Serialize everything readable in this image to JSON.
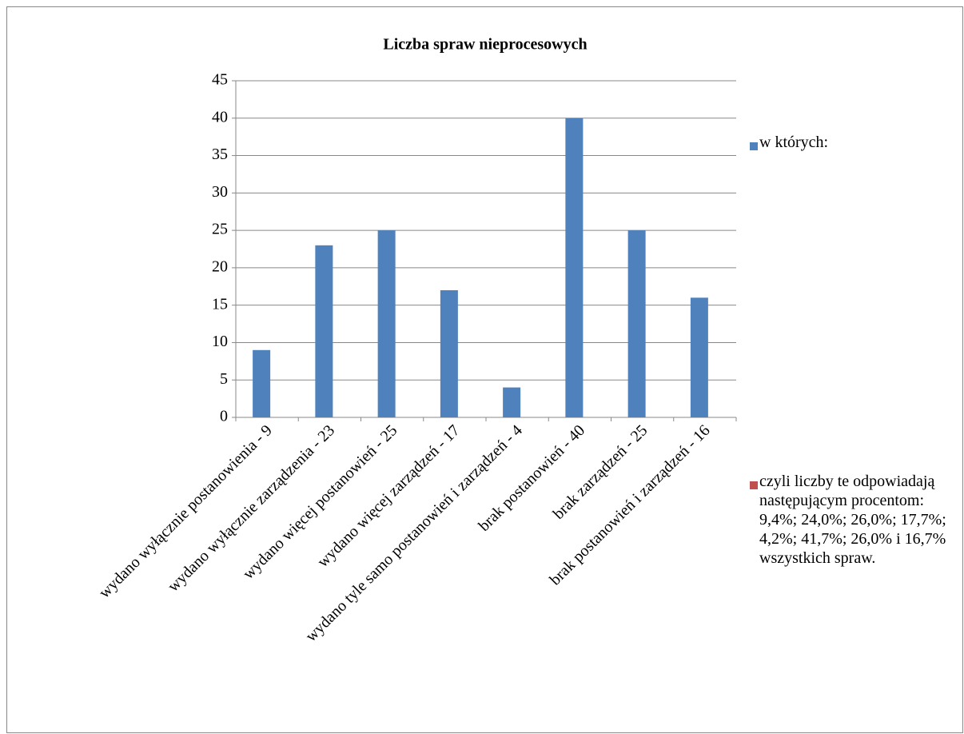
{
  "chart_data": {
    "type": "bar",
    "title": "Liczba spraw nieprocesowych",
    "categories": [
      "wydano wyłącznie postanowienia - 9",
      "wydano wyłącznie zarządzenia - 23",
      "wydano więcej postanowień - 25",
      "wydano więcej zarządzeń - 17",
      "wydano tyle samo postanowień i zarządzeń - 4",
      "brak postanowień - 40",
      "brak zarządzeń - 25",
      "brak postanowień i zarządzeń - 16"
    ],
    "series": [
      {
        "name": "w których:",
        "color": "#4f81bd",
        "values": [
          9,
          23,
          25,
          17,
          4,
          40,
          25,
          16
        ]
      },
      {
        "name": "czyli liczby te odpowiadają następującym procentom: 9,4%; 24,0%; 26,0%; 17,7%; 4,2%; 41,7%; 26,0% i 16,7% wszystkich spraw.",
        "color": "#c0504d",
        "values": [
          null,
          null,
          null,
          null,
          null,
          null,
          null,
          null
        ]
      }
    ],
    "ylim": [
      0,
      45
    ],
    "yticks": [
      0,
      5,
      10,
      15,
      20,
      25,
      30,
      35,
      40,
      45
    ],
    "grid": true
  }
}
